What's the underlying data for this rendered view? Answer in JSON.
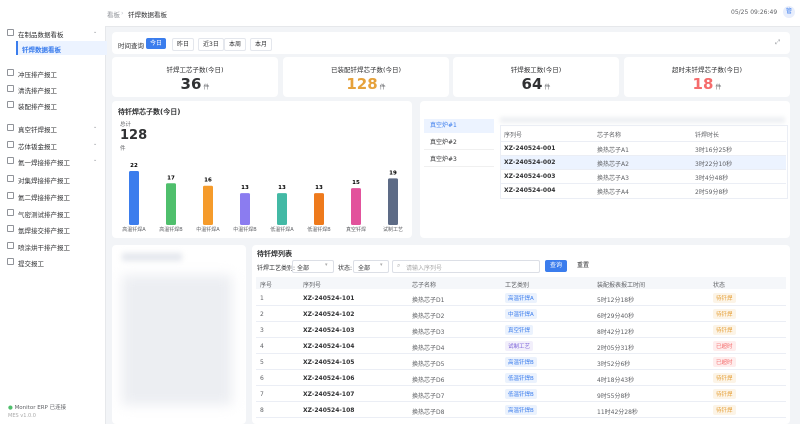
{
  "sidebar": {
    "items": [
      {
        "label": "在制品数据看板",
        "expandable": true
      },
      {
        "label": "钎焊数据看板",
        "active": true
      },
      {
        "label": "冲压排产报工"
      },
      {
        "label": "清洗排产报工"
      },
      {
        "label": "装配排产报工"
      },
      {
        "label": "真空钎焊报工",
        "expandable": true
      },
      {
        "label": "芯体钣金报工",
        "expandable": true
      },
      {
        "label": "氦一焊接排产报工",
        "expandable": true
      },
      {
        "label": "对集焊接排产报工"
      },
      {
        "label": "氦二焊接排产报工"
      },
      {
        "label": "气密测试排产报工"
      },
      {
        "label": "氩焊接交排产报工"
      },
      {
        "label": "喷涂烘干排产报工"
      },
      {
        "label": "提交报工"
      }
    ],
    "status": "Monitor ERP 已连接",
    "version": "MES v1.0.0"
  },
  "header": {
    "breadcrumb": [
      "看板",
      "钎焊数据看板"
    ],
    "time": "05/25 09:26:49",
    "avatar": "管"
  },
  "filter": {
    "label": "时间查询",
    "options": [
      "今日",
      "昨日",
      "近3日",
      "本周",
      "本月"
    ],
    "active": 0
  },
  "stats": [
    {
      "title": "钎焊工芯子数(今日)",
      "value": 36,
      "unit": "件",
      "color": "#303133"
    },
    {
      "title": "已装配钎焊芯子数(今日)",
      "value": 128,
      "unit": "件",
      "color": "#e6a23c"
    },
    {
      "title": "钎焊报工数(今日)",
      "value": 64,
      "unit": "件",
      "color": "#303133"
    },
    {
      "title": "超时未钎焊芯子数(今日)",
      "value": 18,
      "unit": "件",
      "color": "#f56c6c"
    }
  ],
  "chart": {
    "type": "bar",
    "title": "待钎焊芯子数(今日)",
    "total_label": "总计",
    "total": 128,
    "total_unit": "件",
    "categories": [
      "高温钎焊A",
      "高温钎焊B",
      "中温钎焊A",
      "中温钎焊B",
      "低温钎焊A",
      "低温钎焊B",
      "真空钎焊",
      "试制工艺"
    ],
    "values": [
      22,
      17,
      16,
      13,
      13,
      13,
      15,
      19
    ],
    "colors": [
      "#3b7ded",
      "#4fbf6c",
      "#f59b2b",
      "#8b7cf0",
      "#43b9a5",
      "#ee7a1c",
      "#e2529c",
      "#5d6b86"
    ]
  },
  "furnace": {
    "tabs": [
      "真空炉#1",
      "真空炉#2",
      "真空炉#3"
    ],
    "active": 0,
    "columns": [
      "序列号",
      "芯子名称",
      "钎焊时长"
    ],
    "rows": [
      [
        "XZ-240524-001",
        "换热芯子A1",
        "3时16分25秒"
      ],
      [
        "XZ-240524-002",
        "换热芯子A2",
        "3时22分10秒"
      ],
      [
        "XZ-240524-003",
        "换热芯子A3",
        "3时4分48秒"
      ],
      [
        "XZ-240524-004",
        "换热芯子A4",
        "2时59分8秒"
      ]
    ],
    "highlight": 1
  },
  "list": {
    "title": "待钎焊列表",
    "process_filter": {
      "label": "钎焊工艺类别:",
      "value": "全部"
    },
    "status_filter": {
      "label": "状态:",
      "value": "全部"
    },
    "search_placeholder": "请输入序列号",
    "query": "查询",
    "reset": "重置",
    "columns": [
      "序号",
      "序列号",
      "芯子名称",
      "工艺类别",
      "装配报表报工时间",
      "状态"
    ],
    "rows": [
      {
        "cells": [
          "1",
          "XZ-240524-101",
          "换热芯子D1",
          "高温钎焊A",
          "5时12分18秒",
          "待钎焊"
        ],
        "status_color": "#e6a23c",
        "process_color": "#3b7ded"
      },
      {
        "cells": [
          "2",
          "XZ-240524-102",
          "换热芯子D2",
          "中温钎焊A",
          "6时29分40秒",
          "待钎焊"
        ],
        "status_color": "#e6a23c",
        "process_color": "#3b7ded"
      },
      {
        "cells": [
          "3",
          "XZ-240524-103",
          "换热芯子D3",
          "真空钎焊",
          "8时42分12秒",
          "待钎焊"
        ],
        "status_color": "#e6a23c",
        "process_color": "#3b7ded"
      },
      {
        "cells": [
          "4",
          "XZ-240524-104",
          "换热芯子D4",
          "试制工艺",
          "2时05分31秒",
          "已超时"
        ],
        "status_color": "#f56c6c",
        "process_color": "#7b61d9"
      },
      {
        "cells": [
          "5",
          "XZ-240524-105",
          "换热芯子D5",
          "高温钎焊B",
          "3时52分6秒",
          "已超时"
        ],
        "status_color": "#f56c6c",
        "process_color": "#3b7ded"
      },
      {
        "cells": [
          "6",
          "XZ-240524-106",
          "换热芯子D6",
          "低温钎焊B",
          "4时18分43秒",
          "待钎焊"
        ],
        "status_color": "#e6a23c",
        "process_color": "#3b7ded"
      },
      {
        "cells": [
          "7",
          "XZ-240524-107",
          "换热芯子D7",
          "低温钎焊B",
          "9时55分8秒",
          "待钎焊"
        ],
        "status_color": "#e6a23c",
        "process_color": "#3b7ded"
      },
      {
        "cells": [
          "8",
          "XZ-240524-108",
          "换热芯子D8",
          "高温钎焊B",
          "11时42分28秒",
          "待钎焊"
        ],
        "status_color": "#e6a23c",
        "process_color": "#3b7ded"
      }
    ]
  }
}
